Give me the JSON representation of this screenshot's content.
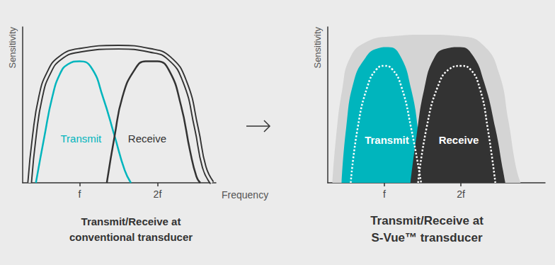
{
  "chart_data": [
    {
      "type": "line",
      "title": [
        "Transmit/Receive at",
        "conventional transducer"
      ],
      "xlabel": "Frequency",
      "ylabel": "Sensitivity",
      "xlim": [
        0.27,
        2.75
      ],
      "xticks": [
        {
          "value": 1,
          "label": "f"
        },
        {
          "value": 2,
          "label": "2f"
        }
      ],
      "ylim": [
        0,
        1
      ],
      "yticks": [],
      "tick_labels": "x",
      "grid": false,
      "series": [
        {
          "type": "line",
          "line_style": "double",
          "color": "#333333",
          "x": [
            0.36,
            0.42,
            0.5,
            0.6,
            0.75,
            1.0,
            1.5,
            1.9,
            2.15,
            2.35,
            2.5,
            2.6,
            2.7
          ],
          "values": [
            0,
            0.3,
            0.55,
            0.7,
            0.8,
            0.85,
            0.87,
            0.85,
            0.8,
            0.65,
            0.35,
            0.1,
            0
          ]
        },
        {
          "name": "Transmit",
          "type": "line",
          "line_style": "solid",
          "color": "#00b5bd",
          "x": [
            0.44,
            0.55,
            0.65,
            0.75,
            0.85,
            1.0,
            1.15,
            1.3,
            1.45,
            1.58,
            1.66
          ],
          "values": [
            0,
            0.3,
            0.55,
            0.7,
            0.76,
            0.78,
            0.74,
            0.55,
            0.3,
            0.08,
            0
          ]
        },
        {
          "name": "Receive",
          "type": "line",
          "line_style": "solid",
          "color": "#333333",
          "x": [
            1.35,
            1.45,
            1.55,
            1.7,
            1.85,
            2.0,
            2.15,
            2.3,
            2.42,
            2.5,
            2.55
          ],
          "values": [
            0,
            0.3,
            0.55,
            0.72,
            0.78,
            0.78,
            0.72,
            0.5,
            0.2,
            0.04,
            0
          ]
        }
      ]
    },
    {
      "type": "line",
      "title": [
        "Transmit/Receive at",
        "S-Vue™ transducer"
      ],
      "ylabel": "Sensitivity",
      "xlim": [
        0.26,
        3.1
      ],
      "xticks": [
        {
          "value": 1,
          "label": "f"
        },
        {
          "value": 2,
          "label": "2f"
        }
      ],
      "ylim": [
        0,
        1
      ],
      "yticks": [],
      "tick_labels": "x",
      "grid": false,
      "series": [
        {
          "type": "area",
          "color": "#d4d4d4",
          "x": [
            0.32,
            0.37,
            0.45,
            0.55,
            0.75,
            1.1,
            1.55,
            2.0,
            2.3,
            2.5,
            2.62,
            2.72,
            2.78
          ],
          "values": [
            0,
            0.3,
            0.6,
            0.8,
            0.9,
            0.94,
            0.95,
            0.94,
            0.88,
            0.7,
            0.4,
            0.1,
            0
          ]
        },
        {
          "name": "Transmit",
          "type": "area",
          "color": "#00b5bd",
          "x": [
            0.44,
            0.5,
            0.6,
            0.75,
            0.9,
            1.05,
            1.2,
            1.35,
            1.45,
            1.52
          ],
          "values": [
            0,
            0.35,
            0.65,
            0.8,
            0.86,
            0.87,
            0.82,
            0.6,
            0.3,
            0
          ]
        },
        {
          "name": "Receive",
          "type": "area",
          "color": "#333333",
          "x": [
            1.34,
            1.42,
            1.52,
            1.65,
            1.8,
            1.99,
            2.15,
            2.3,
            2.45,
            2.55,
            2.58
          ],
          "values": [
            0,
            0.3,
            0.6,
            0.8,
            0.86,
            0.87,
            0.82,
            0.65,
            0.35,
            0.08,
            0
          ]
        },
        {
          "type": "line",
          "line_style": "dotted",
          "color": "#ffffff",
          "x": [
            0.56,
            0.65,
            0.78,
            0.9,
            1.0,
            1.1,
            1.22,
            1.35,
            1.48
          ],
          "values": [
            0,
            0.35,
            0.62,
            0.73,
            0.75,
            0.73,
            0.62,
            0.35,
            0
          ]
        },
        {
          "type": "line",
          "line_style": "dotted",
          "color": "#ffffff",
          "x": [
            1.44,
            1.55,
            1.7,
            1.85,
            2.0,
            2.12,
            2.25,
            2.35,
            2.45
          ],
          "values": [
            0,
            0.35,
            0.62,
            0.73,
            0.75,
            0.73,
            0.6,
            0.35,
            0
          ]
        }
      ]
    }
  ]
}
